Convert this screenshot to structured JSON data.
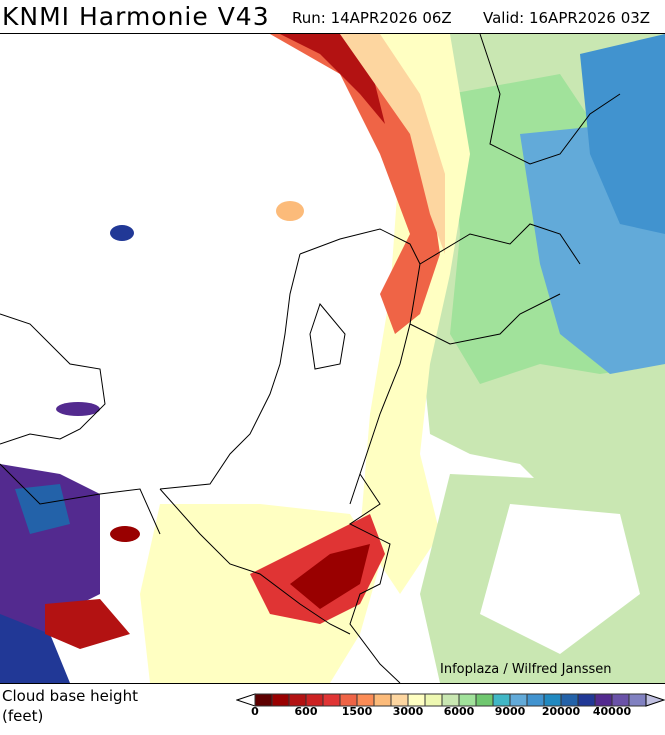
{
  "header": {
    "title": "KNMI Harmonie V43",
    "run": "Run: 14APR2026 06Z",
    "valid": "Valid: 16APR2026 03Z"
  },
  "credit": "Infoplaza / Wilfred Janssen",
  "legend": {
    "variable": "Cloud base height",
    "unit": "(feet)",
    "colors": [
      "#5e0000",
      "#990000",
      "#b31212",
      "#cc2222",
      "#e03434",
      "#ef6446",
      "#fb8c56",
      "#fcbb7a",
      "#fdd6a0",
      "#ffffc2",
      "#eef8b2",
      "#c9e7b2",
      "#a1e29b",
      "#6fc76f",
      "#41b7c6",
      "#62aad9",
      "#4193cf",
      "#2189c0",
      "#2362a9",
      "#213896",
      "#532a8f",
      "#6a52a8",
      "#8181c1"
    ],
    "under_color": "#ffffff",
    "over_color": "#c0c0e0",
    "tick_labels": [
      "0",
      "600",
      "1500",
      "3000",
      "6000",
      "9000",
      "20000",
      "40000"
    ]
  }
}
